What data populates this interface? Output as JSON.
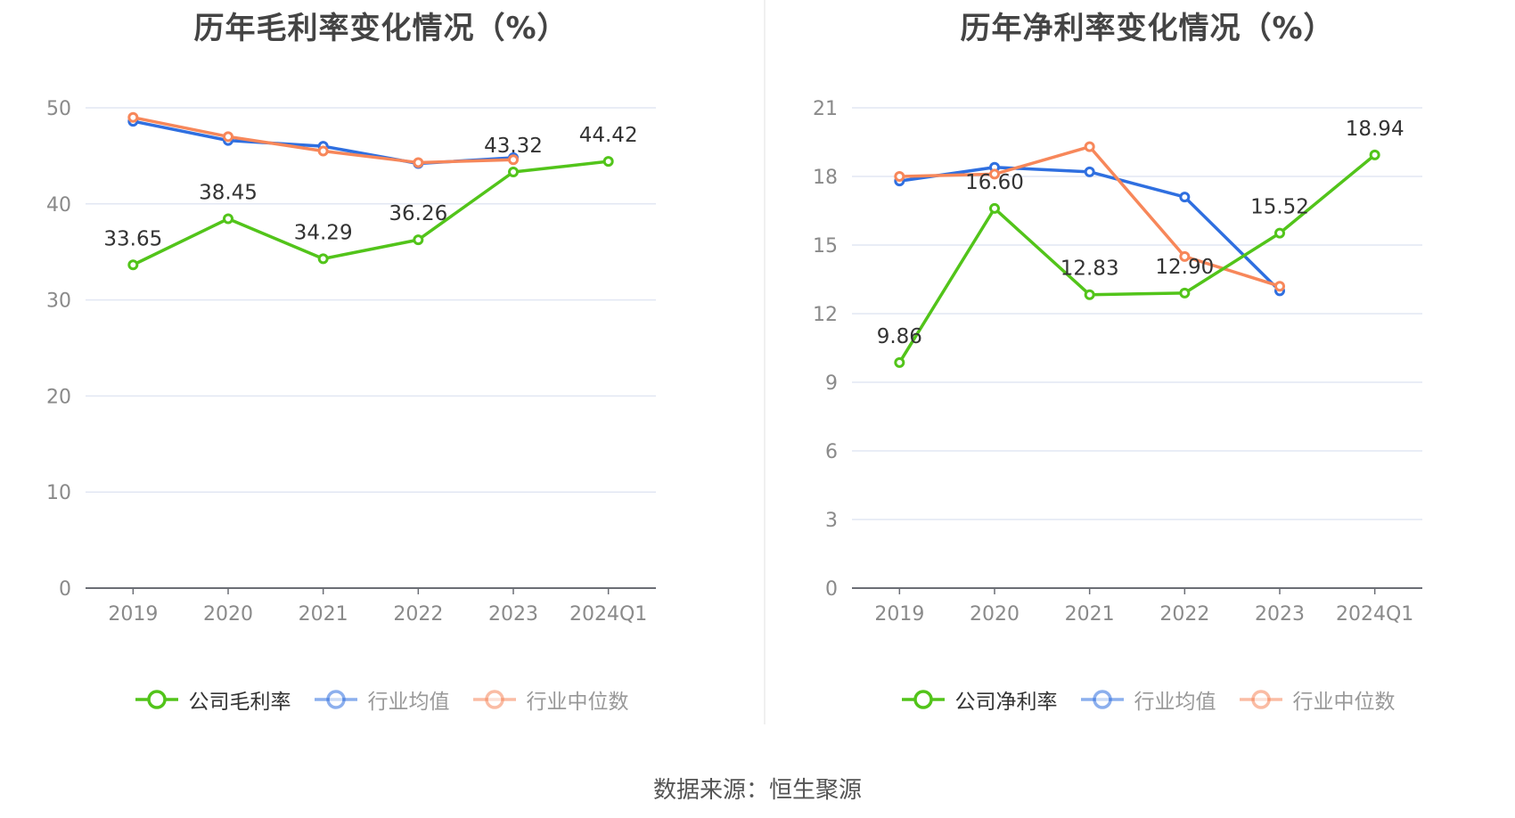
{
  "footer": {
    "source": "数据来源：恒生聚源"
  },
  "colors": {
    "company": "#52c41a",
    "average": "#2f6fe0",
    "median": "#f7875a",
    "grid": "#e2e7f3",
    "axis": "#6b6e75",
    "tick_label": "#8a8a8a"
  },
  "chart_data": [
    {
      "type": "line",
      "title": "历年毛利率变化情况（%）",
      "categories": [
        "2019",
        "2020",
        "2021",
        "2022",
        "2023",
        "2024Q1"
      ],
      "ylim": [
        0,
        50
      ],
      "yticks": [
        0,
        10,
        20,
        30,
        40,
        50
      ],
      "grid": true,
      "legend_position": "bottom",
      "series": [
        {
          "name": "公司毛利率",
          "color_key": "company",
          "values": [
            33.65,
            38.45,
            34.29,
            36.26,
            43.32,
            44.42
          ],
          "labels": [
            "33.65",
            "38.45",
            "34.29",
            "36.26",
            "43.32",
            "44.42"
          ],
          "active": true
        },
        {
          "name": "行业均值",
          "color_key": "average",
          "values": [
            48.6,
            46.6,
            46.0,
            44.2,
            44.8,
            null
          ],
          "active": false
        },
        {
          "name": "行业中位数",
          "color_key": "median",
          "values": [
            49.0,
            47.0,
            45.5,
            44.3,
            44.6,
            null
          ],
          "active": false
        }
      ]
    },
    {
      "type": "line",
      "title": "历年净利率变化情况（%）",
      "categories": [
        "2019",
        "2020",
        "2021",
        "2022",
        "2023",
        "2024Q1"
      ],
      "ylim": [
        0,
        21
      ],
      "yticks": [
        0,
        3,
        6,
        9,
        12,
        15,
        18,
        21
      ],
      "grid": true,
      "legend_position": "bottom",
      "series": [
        {
          "name": "公司净利率",
          "color_key": "company",
          "values": [
            9.86,
            16.6,
            12.83,
            12.9,
            15.52,
            18.94
          ],
          "labels": [
            "9.86",
            "16.60",
            "12.83",
            "12.90",
            "15.52",
            "18.94"
          ],
          "active": true
        },
        {
          "name": "行业均值",
          "color_key": "average",
          "values": [
            17.8,
            18.4,
            18.2,
            17.1,
            13.0,
            null
          ],
          "active": false
        },
        {
          "name": "行业中位数",
          "color_key": "median",
          "values": [
            18.0,
            18.1,
            19.3,
            14.5,
            13.2,
            null
          ],
          "active": false
        }
      ]
    }
  ]
}
